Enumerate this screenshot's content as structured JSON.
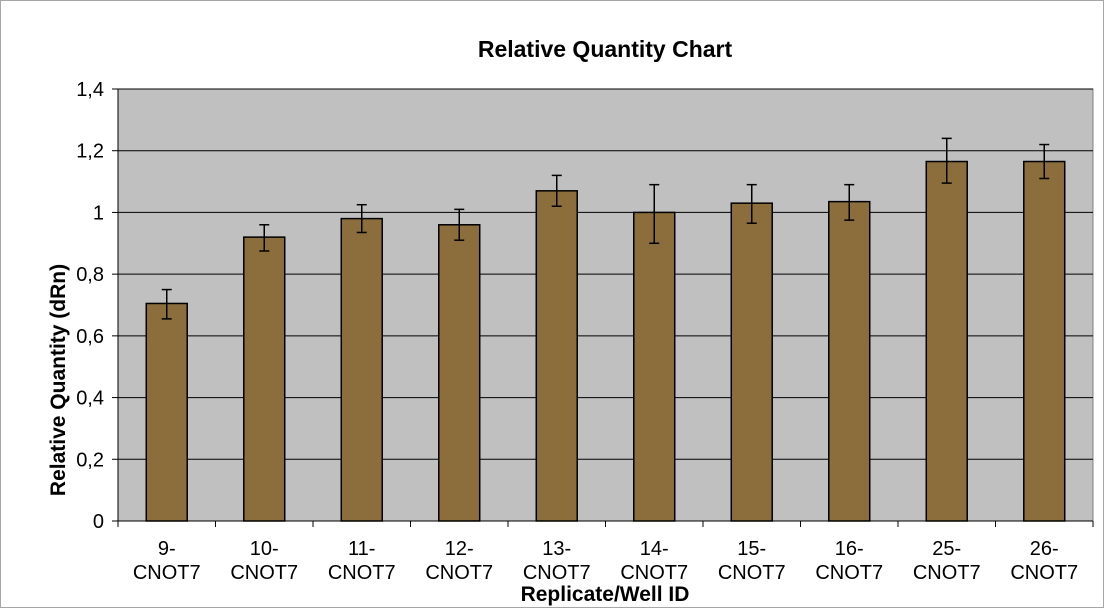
{
  "chart_data": {
    "type": "bar",
    "title": "Relative Quantity Chart",
    "xlabel": "Replicate/Well ID",
    "ylabel": "Relative Quantity (dRn)",
    "categories": [
      [
        "9-",
        "CNOT7"
      ],
      [
        "10-",
        "CNOT7"
      ],
      [
        "11-",
        "CNOT7"
      ],
      [
        "12-",
        "CNOT7"
      ],
      [
        "13-",
        "CNOT7"
      ],
      [
        "14-",
        "CNOT7"
      ],
      [
        "15-",
        "CNOT7"
      ],
      [
        "16-",
        "CNOT7"
      ],
      [
        "25-",
        "CNOT7"
      ],
      [
        "26-",
        "CNOT7"
      ]
    ],
    "values": [
      0.705,
      0.92,
      0.98,
      0.96,
      1.07,
      1.0,
      1.03,
      1.035,
      1.165,
      1.165
    ],
    "error_low": [
      0.655,
      0.875,
      0.935,
      0.91,
      1.02,
      0.9,
      0.965,
      0.975,
      1.095,
      1.11
    ],
    "error_high": [
      0.75,
      0.96,
      1.025,
      1.01,
      1.12,
      1.09,
      1.09,
      1.09,
      1.24,
      1.22
    ],
    "ylim": [
      0,
      1.4
    ],
    "yticks": [
      "0",
      "0,2",
      "0,4",
      "0,6",
      "0,8",
      "1",
      "1,2",
      "1,4"
    ],
    "ytick_values": [
      0,
      0.2,
      0.4,
      0.6,
      0.8,
      1.0,
      1.2,
      1.4
    ],
    "grid": true,
    "colors": {
      "bar": "#8b6e3c",
      "plot_background": "#c0c0c0",
      "grid": "#000000"
    }
  }
}
